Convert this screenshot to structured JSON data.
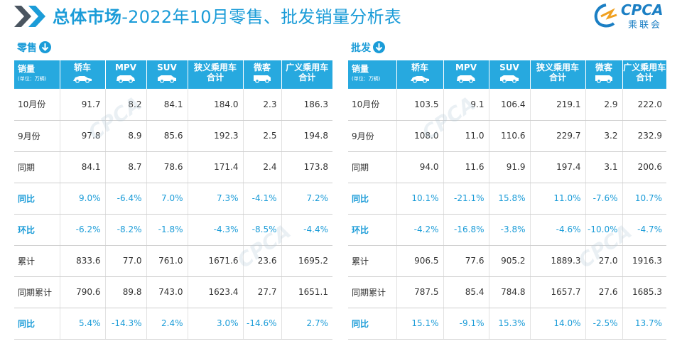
{
  "header": {
    "title_bold": "总体市场",
    "title_rest": "-2022年10月零售、批发销量分析表",
    "logo_text": "CPCA",
    "logo_cn": "乘联会",
    "logo_icon": "cpca-logo-icon"
  },
  "colors": {
    "accent": "#27a9df",
    "title": "#1b9cd8",
    "pct_text": "#1b9cd8"
  },
  "columns": [
    {
      "label": "销量",
      "unit": "(单位：万辆)",
      "icon": ""
    },
    {
      "label": "轿车",
      "icon": "sedan-icon"
    },
    {
      "label": "MPV",
      "icon": "mpv-icon"
    },
    {
      "label": "SUV",
      "icon": "suv-icon"
    },
    {
      "label": "狭义乘用车",
      "label2": "合计",
      "icon": ""
    },
    {
      "label": "微客",
      "icon": "minivan-icon"
    },
    {
      "label": "广义乘用车",
      "label2": "合计",
      "icon": ""
    }
  ],
  "retail": {
    "label": "零售",
    "rows": [
      {
        "name": "10月份",
        "pct": false,
        "values": [
          "91.7",
          "8.2",
          "84.1",
          "184.0",
          "2.3",
          "186.3"
        ]
      },
      {
        "name": "9月份",
        "pct": false,
        "values": [
          "97.8",
          "8.9",
          "85.6",
          "192.3",
          "2.5",
          "194.8"
        ]
      },
      {
        "name": "同期",
        "pct": false,
        "values": [
          "84.1",
          "8.7",
          "78.6",
          "171.4",
          "2.4",
          "173.8"
        ]
      },
      {
        "name": "同比",
        "pct": true,
        "values": [
          "9.0%",
          "-6.4%",
          "7.0%",
          "7.3%",
          "-4.1%",
          "7.2%"
        ]
      },
      {
        "name": "环比",
        "pct": true,
        "values": [
          "-6.2%",
          "-8.2%",
          "-1.8%",
          "-4.3%",
          "-8.5%",
          "-4.4%"
        ]
      },
      {
        "name": "累计",
        "pct": false,
        "values": [
          "833.6",
          "77.0",
          "761.0",
          "1671.6",
          "23.6",
          "1695.2"
        ]
      },
      {
        "name": "同期累计",
        "pct": false,
        "values": [
          "790.6",
          "89.8",
          "743.0",
          "1623.4",
          "27.7",
          "1651.1"
        ]
      },
      {
        "name": "同比",
        "pct": true,
        "values": [
          "5.4%",
          "-14.3%",
          "2.4%",
          "3.0%",
          "-14.6%",
          "2.7%"
        ]
      }
    ]
  },
  "wholesale": {
    "label": "批发",
    "rows": [
      {
        "name": "10月份",
        "pct": false,
        "values": [
          "103.5",
          "9.1",
          "106.4",
          "219.1",
          "2.9",
          "222.0"
        ]
      },
      {
        "name": "9月份",
        "pct": false,
        "values": [
          "108.0",
          "11.0",
          "110.6",
          "229.7",
          "3.2",
          "232.9"
        ]
      },
      {
        "name": "同期",
        "pct": false,
        "values": [
          "94.0",
          "11.6",
          "91.9",
          "197.4",
          "3.1",
          "200.6"
        ]
      },
      {
        "name": "同比",
        "pct": true,
        "values": [
          "10.1%",
          "-21.1%",
          "15.8%",
          "11.0%",
          "-7.6%",
          "10.7%"
        ]
      },
      {
        "name": "环比",
        "pct": true,
        "values": [
          "-4.2%",
          "-16.8%",
          "-3.8%",
          "-4.6%",
          "-10.0%",
          "-4.7%"
        ]
      },
      {
        "name": "累计",
        "pct": false,
        "values": [
          "906.5",
          "77.6",
          "905.2",
          "1889.3",
          "27.0",
          "1916.3"
        ]
      },
      {
        "name": "同期累计",
        "pct": false,
        "values": [
          "787.5",
          "85.4",
          "784.8",
          "1657.7",
          "27.6",
          "1685.3"
        ]
      },
      {
        "name": "同比",
        "pct": true,
        "values": [
          "15.1%",
          "-9.1%",
          "15.3%",
          "14.0%",
          "-2.5%",
          "13.7%"
        ]
      }
    ]
  }
}
